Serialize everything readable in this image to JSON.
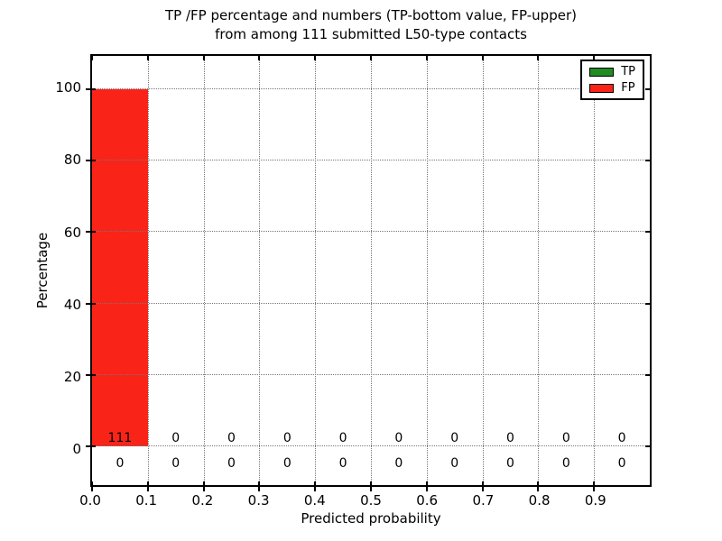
{
  "figure": {
    "title_line1": "TP /FP percentage and numbers (TP-bottom value, FP-upper)",
    "title_line2": "from among 111 submitted L50-type contacts"
  },
  "chart_data": {
    "type": "bar",
    "title": "TP /FP percentage and numbers (TP-bottom value, FP-upper) from among 111 submitted L50-type contacts",
    "xlabel": "Predicted probability",
    "ylabel": "Percentage",
    "total_submitted_contacts": 111,
    "bin_edges": [
      0.0,
      0.1,
      0.2,
      0.3,
      0.4,
      0.5,
      0.6,
      0.7,
      0.8,
      0.9,
      1.0
    ],
    "series": [
      {
        "name": "TP",
        "color": "#228b22",
        "percent_values": [
          0,
          0,
          0,
          0,
          0,
          0,
          0,
          0,
          0,
          0
        ],
        "counts": [
          0,
          0,
          0,
          0,
          0,
          0,
          0,
          0,
          0,
          0
        ]
      },
      {
        "name": "FP",
        "color": "#fa2318",
        "percent_values": [
          100,
          0,
          0,
          0,
          0,
          0,
          0,
          0,
          0,
          0
        ],
        "counts": [
          111,
          0,
          0,
          0,
          0,
          0,
          0,
          0,
          0,
          0
        ]
      }
    ],
    "xticks": [
      "0.0",
      "0.1",
      "0.2",
      "0.3",
      "0.4",
      "0.5",
      "0.6",
      "0.7",
      "0.8",
      "0.9"
    ],
    "xtick_values": [
      0,
      0.1,
      0.2,
      0.3,
      0.4,
      0.5,
      0.6,
      0.7,
      0.8,
      0.9
    ],
    "yticks": [
      "0",
      "20",
      "40",
      "60",
      "80",
      "100"
    ],
    "ytick_values": [
      0,
      20,
      40,
      60,
      80,
      100
    ],
    "xlim": [
      0,
      1.0
    ],
    "ylim": [
      -10.75,
      109.25
    ],
    "grid": true,
    "grid_style": "dotted",
    "legend": {
      "position": "upper right",
      "entries": [
        {
          "label": "TP",
          "color": "#228b22"
        },
        {
          "label": "FP",
          "color": "#fa2318"
        }
      ]
    }
  }
}
